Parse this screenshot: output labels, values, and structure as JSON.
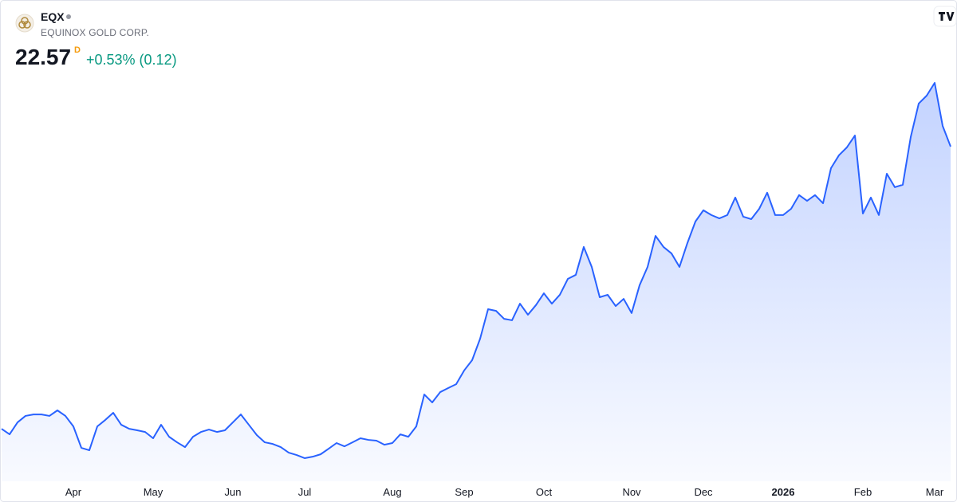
{
  "header": {
    "symbol": "EQX",
    "name": "EQUINOX GOLD CORP.",
    "price": 22.57,
    "interval": "D",
    "change": "+0.53% (0.12)"
  },
  "chart_data": {
    "type": "area",
    "color": "#2962ff",
    "values": [
      7.28,
      6.98,
      7.63,
      7.98,
      8.06,
      8.06,
      7.98,
      8.28,
      7.98,
      7.41,
      6.25,
      6.12,
      7.41,
      7.76,
      8.15,
      7.5,
      7.28,
      7.2,
      7.11,
      6.77,
      7.5,
      6.85,
      6.55,
      6.29,
      6.85,
      7.11,
      7.24,
      7.11,
      7.2,
      7.63,
      8.06,
      7.5,
      6.94,
      6.55,
      6.46,
      6.29,
      5.99,
      5.86,
      5.69,
      5.77,
      5.9,
      6.2,
      6.51,
      6.33,
      6.55,
      6.77,
      6.68,
      6.64,
      6.42,
      6.51,
      6.98,
      6.85,
      7.41,
      9.14,
      8.71,
      9.27,
      9.49,
      9.7,
      10.44,
      11.0,
      12.16,
      13.76,
      13.67,
      13.24,
      13.16,
      14.06,
      13.46,
      13.98,
      14.62,
      14.06,
      14.54,
      15.4,
      15.62,
      17.13,
      16.05,
      14.41,
      14.54,
      13.93,
      14.32,
      13.55,
      15.06,
      16.05,
      17.73,
      17.13,
      16.78,
      16.05,
      17.35,
      18.51,
      19.12,
      18.86,
      18.68,
      18.86,
      19.81,
      18.77,
      18.64,
      19.2,
      20.07,
      18.86,
      18.86,
      19.2,
      19.94,
      19.63,
      19.94,
      19.5,
      21.4,
      22.1,
      22.53,
      23.17,
      18.94,
      19.81,
      18.86,
      21.1,
      20.37,
      20.5,
      23.09,
      24.9,
      25.33,
      26.02,
      23.69,
      22.57
    ],
    "categories": [
      null,
      null,
      null,
      null,
      null,
      null,
      null,
      null,
      null,
      "Apr",
      null,
      null,
      null,
      null,
      null,
      null,
      null,
      null,
      null,
      "May",
      null,
      null,
      null,
      null,
      null,
      null,
      null,
      null,
      null,
      "Jun",
      null,
      null,
      null,
      null,
      null,
      null,
      null,
      null,
      "Jul",
      null,
      null,
      null,
      null,
      null,
      null,
      null,
      null,
      null,
      null,
      "Aug",
      null,
      null,
      null,
      null,
      null,
      null,
      null,
      null,
      "Sep",
      null,
      null,
      null,
      null,
      null,
      null,
      null,
      null,
      null,
      "Oct",
      null,
      null,
      null,
      null,
      null,
      null,
      null,
      null,
      null,
      null,
      "Nov",
      null,
      null,
      null,
      null,
      null,
      null,
      null,
      null,
      "Dec",
      null,
      null,
      null,
      null,
      null,
      null,
      null,
      null,
      null,
      "2026",
      null,
      null,
      null,
      null,
      null,
      null,
      null,
      null,
      null,
      "Feb",
      null,
      null,
      null,
      null,
      null,
      null,
      null,
      null,
      "Mar",
      null,
      null
    ]
  }
}
